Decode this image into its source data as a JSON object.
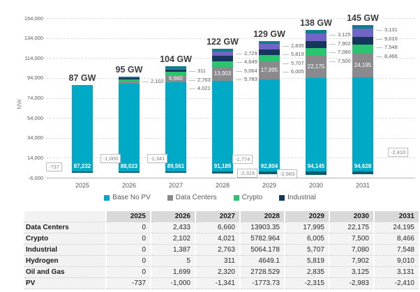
{
  "chart": {
    "y_axis_title": "MW",
    "y_ticks": [
      "154,000",
      "134,000",
      "114,000",
      "94,000",
      "74,000",
      "54,000",
      "34,000",
      "14,000",
      "-6,000"
    ]
  },
  "chart_data": {
    "type": "bar",
    "stacked": true,
    "ylabel": "MW",
    "ylim": [
      -6000,
      154000
    ],
    "gridline_step": 20000,
    "legend_position": "bottom",
    "categories": [
      "2025",
      "2026",
      "2027",
      "2028",
      "2029",
      "2030",
      "2031"
    ],
    "series": [
      {
        "name": "Base No PV",
        "color": "#00a9c6",
        "values": [
          87232,
          88023,
          89561,
          91189,
          92804,
          94145,
          94628
        ],
        "bar_labels": [
          "87,232",
          "88,023",
          "89,561",
          "91,189",
          "92,804",
          "94,145",
          "94,628"
        ]
      },
      {
        "name": "Data Centers",
        "color": "#8a8a8e",
        "values": [
          0,
          2433,
          6660,
          13903.35,
          17995,
          22175,
          24195
        ],
        "bar_labels": [
          "",
          "",
          "6,660",
          "13,903",
          "17,995",
          "22,175",
          "24,195"
        ]
      },
      {
        "name": "Crypto",
        "color": "#2bc46e",
        "values": [
          0,
          2102,
          4021,
          5782.964,
          6005,
          7500,
          8466
        ]
      },
      {
        "name": "Industrial",
        "color": "#16365c",
        "values": [
          0,
          1387,
          2763,
          5064.178,
          5707,
          7080,
          7548
        ]
      },
      {
        "name": "Hydrogen",
        "color": "#7064c6",
        "values": [
          0,
          5,
          311,
          4649.1,
          5819,
          7902,
          9010
        ]
      },
      {
        "name": "Oil and Gas",
        "color": "#117e8e",
        "values": [
          0,
          1699,
          2320,
          2728.529,
          2835,
          3125,
          3131
        ]
      },
      {
        "name": "PV",
        "color": "#0c5f70",
        "values": [
          -737,
          -1000,
          -1341,
          -1773.73,
          -2315,
          -2983,
          -2410
        ]
      }
    ],
    "totals": [
      "87 GW",
      "95 GW",
      "104 GW",
      "122 GW",
      "129 GW",
      "138 GW",
      "145 GW"
    ],
    "pv_callouts": [
      "-737",
      "-1,000",
      "-1,341",
      "-1,774",
      "-2,315",
      "-2,983",
      "-2,410"
    ],
    "leader_labels": [
      [],
      [
        {
          "series": "Crypto",
          "text": "2,102"
        }
      ],
      [
        {
          "series": "Hydrogen",
          "text": "311"
        },
        {
          "series": "Industrial",
          "text": "2,763"
        },
        {
          "series": "Crypto",
          "text": "4,021"
        }
      ],
      [
        {
          "series": "Oil and Gas",
          "text": "2,729"
        },
        {
          "series": "Hydrogen",
          "text": "4,649"
        },
        {
          "series": "Industrial",
          "text": "5,064"
        },
        {
          "series": "Crypto",
          "text": "5,783"
        }
      ],
      [
        {
          "series": "Oil and Gas",
          "text": "2,835"
        },
        {
          "series": "Hydrogen",
          "text": "5,819"
        },
        {
          "series": "Industrial",
          "text": "5,707"
        },
        {
          "series": "Crypto",
          "text": "6,005"
        }
      ],
      [
        {
          "series": "Oil and Gas",
          "text": "3,125"
        },
        {
          "series": "Hydrogen",
          "text": "7,902"
        },
        {
          "series": "Industrial",
          "text": "7,080"
        },
        {
          "series": "Crypto",
          "text": "7,500"
        }
      ],
      [
        {
          "series": "Oil and Gas",
          "text": "3,131"
        },
        {
          "series": "Hydrogen",
          "text": "9,010"
        },
        {
          "series": "Industrial",
          "text": "7,548"
        },
        {
          "series": "Crypto",
          "text": "8,466"
        }
      ]
    ]
  },
  "legend": {
    "items": [
      {
        "label": "Base No PV",
        "color": "#00a9c6"
      },
      {
        "label": "Data Centers",
        "color": "#8a8a8e"
      },
      {
        "label": "Crypto",
        "color": "#2bc46e"
      },
      {
        "label": "Industrial",
        "color": "#16365c"
      }
    ]
  },
  "table": {
    "corner": "",
    "years": [
      "2025",
      "2026",
      "2027",
      "2028",
      "2029",
      "2030",
      "2031"
    ],
    "rows": [
      {
        "label": "Data Centers",
        "cells": [
          "0",
          "2,433",
          "6,660",
          "13903.35",
          "17,995",
          "22,175",
          "24,195"
        ]
      },
      {
        "label": "Crypto",
        "cells": [
          "0",
          "2,102",
          "4,021",
          "5782.964",
          "6,005",
          "7,500",
          "8,466"
        ]
      },
      {
        "label": "Industrial",
        "cells": [
          "0",
          "1,387",
          "2,763",
          "5064.178",
          "5,707",
          "7,080",
          "7,548"
        ]
      },
      {
        "label": "Hydrogen",
        "cells": [
          "0",
          "5",
          "311",
          "4649.1",
          "5,819",
          "7,902",
          "9,010"
        ]
      },
      {
        "label": "Oil and Gas",
        "cells": [
          "0",
          "1,699",
          "2,320",
          "2728.529",
          "2,835",
          "3,125",
          "3,131"
        ]
      },
      {
        "label": "PV",
        "cells": [
          "-737",
          "-1,000",
          "-1,341",
          "-1773.73",
          "-2,315",
          "-2,983",
          "-2,410"
        ]
      }
    ]
  }
}
